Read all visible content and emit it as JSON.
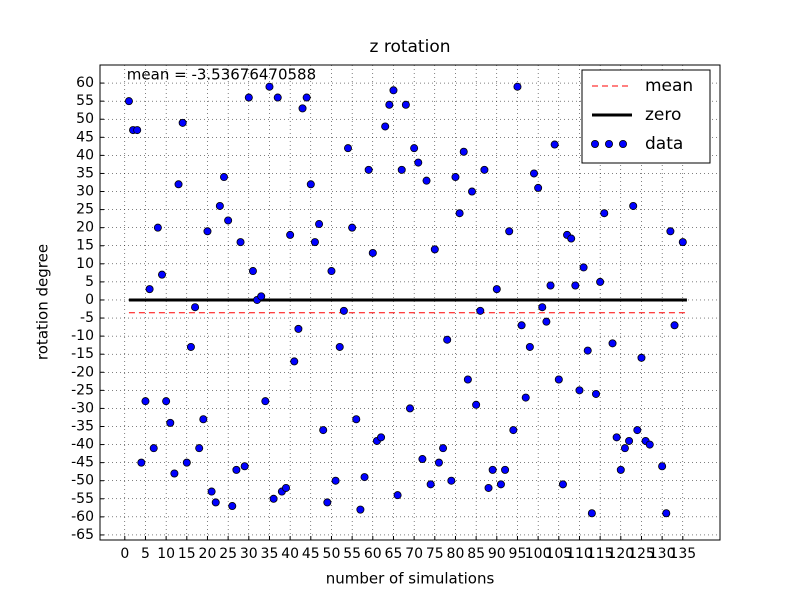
{
  "chart_data": {
    "type": "scatter",
    "title": "z rotation",
    "xlabel": "number of simulations",
    "ylabel": "rotation degree",
    "annotation": "mean = -3.53676470588",
    "xlim": [
      -6,
      144
    ],
    "ylim": [
      -66.4,
      65
    ],
    "xticks": [
      0,
      5,
      10,
      15,
      20,
      25,
      30,
      35,
      40,
      45,
      50,
      55,
      60,
      65,
      70,
      75,
      80,
      85,
      90,
      95,
      100,
      105,
      110,
      115,
      120,
      125,
      130,
      135
    ],
    "yticks": [
      -65,
      -60,
      -55,
      -50,
      -45,
      -40,
      -35,
      -30,
      -25,
      -20,
      -15,
      -10,
      -5,
      0,
      5,
      10,
      15,
      20,
      25,
      30,
      35,
      40,
      45,
      50,
      55,
      60
    ],
    "grid": true,
    "legend": "upper right",
    "series": [
      {
        "name": "mean",
        "kind": "line",
        "style": "dashed",
        "color": "#ff0000",
        "x": [
          1,
          136
        ],
        "values": [
          -3.53676470588,
          -3.53676470588
        ]
      },
      {
        "name": "zero",
        "kind": "line",
        "style": "solid",
        "color": "#000000",
        "x": [
          1,
          136
        ],
        "values": [
          0,
          0
        ]
      },
      {
        "name": "data",
        "kind": "scatter",
        "color": "#0000ff",
        "x": [
          1,
          2,
          3,
          4,
          5,
          6,
          7,
          8,
          9,
          10,
          11,
          12,
          13,
          14,
          15,
          16,
          17,
          18,
          19,
          20,
          21,
          22,
          23,
          24,
          25,
          26,
          27,
          28,
          29,
          30,
          31,
          32,
          33,
          34,
          35,
          36,
          37,
          38,
          39,
          40,
          41,
          42,
          43,
          44,
          45,
          46,
          47,
          48,
          49,
          50,
          51,
          52,
          53,
          54,
          55,
          56,
          57,
          58,
          59,
          60,
          61,
          62,
          63,
          64,
          65,
          66,
          67,
          68,
          69,
          70,
          71,
          72,
          73,
          74,
          75,
          76,
          77,
          78,
          79,
          80,
          81,
          82,
          83,
          84,
          85,
          86,
          87,
          88,
          89,
          90,
          91,
          92,
          93,
          94,
          95,
          96,
          97,
          98,
          99,
          100,
          101,
          102,
          103,
          104,
          105,
          106,
          107,
          108,
          109,
          110,
          111,
          112,
          113,
          114,
          115,
          116,
          117,
          118,
          119,
          120,
          121,
          122,
          123,
          124,
          125,
          126,
          127,
          130,
          131,
          132,
          133,
          135
        ],
        "values": [
          55,
          47,
          47,
          -45,
          -28,
          3,
          -41,
          20,
          7,
          -28,
          -34,
          -48,
          32,
          49,
          -45,
          -13,
          -2,
          -41,
          -33,
          19,
          -53,
          -56,
          26,
          34,
          22,
          -57,
          -47,
          16,
          -46,
          56,
          8,
          0,
          1,
          -28,
          59,
          -55,
          56,
          -53,
          -52,
          18,
          -17,
          -8,
          53,
          56,
          32,
          16,
          21,
          -36,
          -56,
          8,
          -50,
          -13,
          -3,
          42,
          20,
          -33,
          -58,
          -49,
          36,
          13,
          -39,
          -38,
          48,
          54,
          58,
          -54,
          36,
          54,
          -30,
          42,
          38,
          -44,
          33,
          -51,
          14,
          -45,
          -41,
          -11,
          -50,
          34,
          24,
          41,
          -22,
          30,
          -29,
          -3,
          36,
          -52,
          -47,
          3,
          -51,
          -47,
          19,
          -36,
          59,
          -7,
          -27,
          -13,
          35,
          31,
          -2,
          -6,
          4,
          43,
          -22,
          -51,
          18,
          17,
          4,
          -25,
          9,
          -14,
          -59,
          -26,
          5,
          24,
          44,
          -12,
          -38,
          -47,
          -41,
          -39,
          26,
          -36,
          -16,
          -39,
          -40,
          -46,
          -59,
          19,
          -7,
          16
        ]
      }
    ]
  }
}
